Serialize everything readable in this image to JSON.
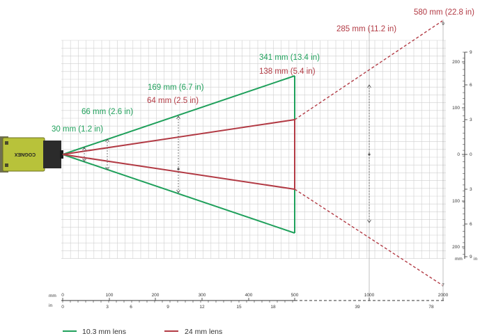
{
  "colors": {
    "green": "#1fa05b",
    "red": "#b23a44",
    "grid": "#cfcfcf",
    "axis": "#333333",
    "camera_body": "#b8c23a"
  },
  "camera": {
    "brand": "COGNEX"
  },
  "labels": {
    "green": [
      {
        "text": "30 mm (1.2 in)"
      },
      {
        "text": "66 mm (2.6 in)"
      },
      {
        "text": "169 mm (6.7 in)"
      },
      {
        "text": "341 mm (13.4 in)"
      }
    ],
    "red": [
      {
        "text": "64 mm (2.5 in)"
      },
      {
        "text": "138 mm (5.4 in)"
      },
      {
        "text": "285 mm (11.2 in)"
      },
      {
        "text": "580 mm (22.8 in)"
      }
    ]
  },
  "bottom_axis": {
    "mm_unit": "mm",
    "in_unit": "in",
    "mm_ticks": [
      "0",
      "100",
      "200",
      "300",
      "400",
      "500",
      "1000",
      "2000"
    ],
    "in_ticks": [
      "0",
      "3",
      "6",
      "9",
      "12",
      "15",
      "18",
      "39",
      "78"
    ]
  },
  "right_axis": {
    "mm_unit": "mm",
    "in_unit": "in",
    "mm_ticks": [
      "200",
      "100",
      "0",
      "100",
      "200"
    ],
    "in_ticks": [
      "9",
      "6",
      "3",
      "0",
      "3",
      "6",
      "9"
    ],
    "top_marker": "9",
    "bottom_marker": "7"
  },
  "legend": [
    {
      "name": "10.3 mm lens",
      "color": "#1fa05b"
    },
    {
      "name": "24 mm lens",
      "color": "#b23a44"
    }
  ]
}
